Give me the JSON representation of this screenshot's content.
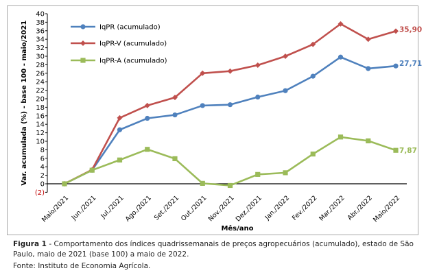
{
  "chart_data": {
    "type": "line",
    "ylabel": "Var. acumulada (%) - base 100 - maio/2021",
    "xlabel": "Mês/ano",
    "ylim": [
      -2,
      40
    ],
    "yticks": [
      0,
      2,
      4,
      6,
      8,
      10,
      12,
      14,
      16,
      18,
      20,
      22,
      24,
      26,
      28,
      30,
      32,
      34,
      36,
      38,
      40
    ],
    "negative_tick_label": "(2)",
    "categories": [
      "Maio/2021",
      "Jun./2021",
      "Jul./2021",
      "Ago./2021",
      "Set./2021",
      "Out./2021",
      "Nov./2021",
      "Dez./2021",
      "Jan./2022",
      "Fev./2022",
      "Mar./2022",
      "Abr./2022",
      "Maio/2022"
    ],
    "series": [
      {
        "name": "IqPR (acumulado)",
        "color": "#4f81bd",
        "marker": "circle",
        "values": [
          0,
          3.2,
          12.7,
          15.4,
          16.2,
          18.4,
          18.6,
          20.4,
          21.9,
          25.3,
          29.8,
          27.1,
          27.71
        ],
        "end_label": "27,71"
      },
      {
        "name": "IqPR-V  (acumulado)",
        "color": "#c0504d",
        "marker": "diamond",
        "values": [
          0,
          3.3,
          15.5,
          18.4,
          20.3,
          26.0,
          26.5,
          27.9,
          30.0,
          32.8,
          37.6,
          34.0,
          35.9
        ],
        "end_label": "35,90"
      },
      {
        "name": "IqPR-A  (acumulado)",
        "color": "#9bbb59",
        "marker": "square",
        "values": [
          0,
          3.2,
          5.6,
          8.1,
          5.9,
          0.1,
          -0.4,
          2.2,
          2.6,
          7.0,
          11.0,
          10.1,
          7.87
        ],
        "end_label": "7,87"
      }
    ],
    "legend_position": "top-left",
    "grid": false
  },
  "caption": {
    "figure_label": "Figura 1",
    "figure_text": " - Comportamento dos índices quadrissemanais de preços agropecuários (acumulado), estado de São Paulo, maio de 2021 (base 100) a maio de 2022.",
    "source": "Fonte: Instituto de Economia Agrícola."
  }
}
